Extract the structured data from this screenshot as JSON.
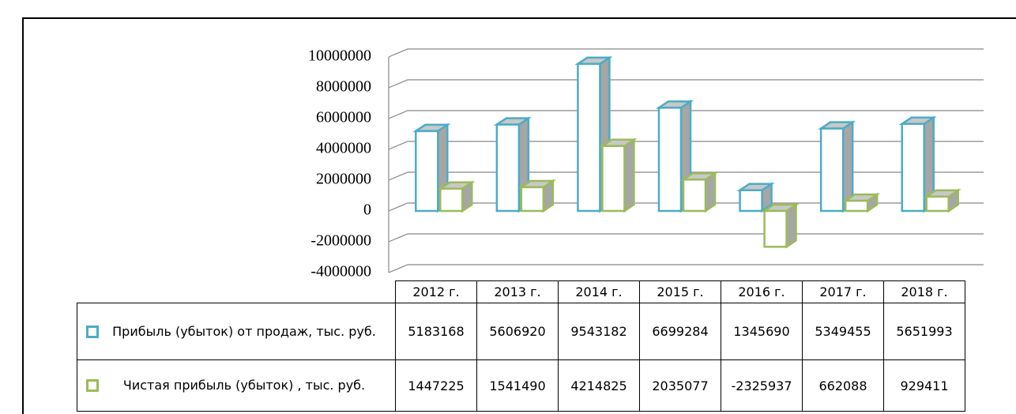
{
  "chart_data": {
    "type": "bar",
    "categories": [
      "2012 г.",
      "2013 г.",
      "2014 г.",
      "2015 г.",
      "2016 г.",
      "2017 г.",
      "2018 г."
    ],
    "series": [
      {
        "name": "Прибыль (убыток) от продаж, тыс. руб.",
        "color": "#4bacc6",
        "values": [
          5183168,
          5606920,
          9543182,
          6699284,
          1345690,
          5349455,
          5651993
        ]
      },
      {
        "name": "Чистая прибыль (убыток) , тыс. руб.",
        "color": "#9bbb59",
        "values": [
          1447225,
          1541490,
          4214825,
          2035077,
          -2325937,
          662088,
          929411
        ]
      }
    ],
    "ylim": [
      -4000000,
      10000000
    ],
    "yticks": [
      -4000000,
      -2000000,
      0,
      2000000,
      4000000,
      6000000,
      8000000,
      10000000
    ],
    "grid": true
  }
}
